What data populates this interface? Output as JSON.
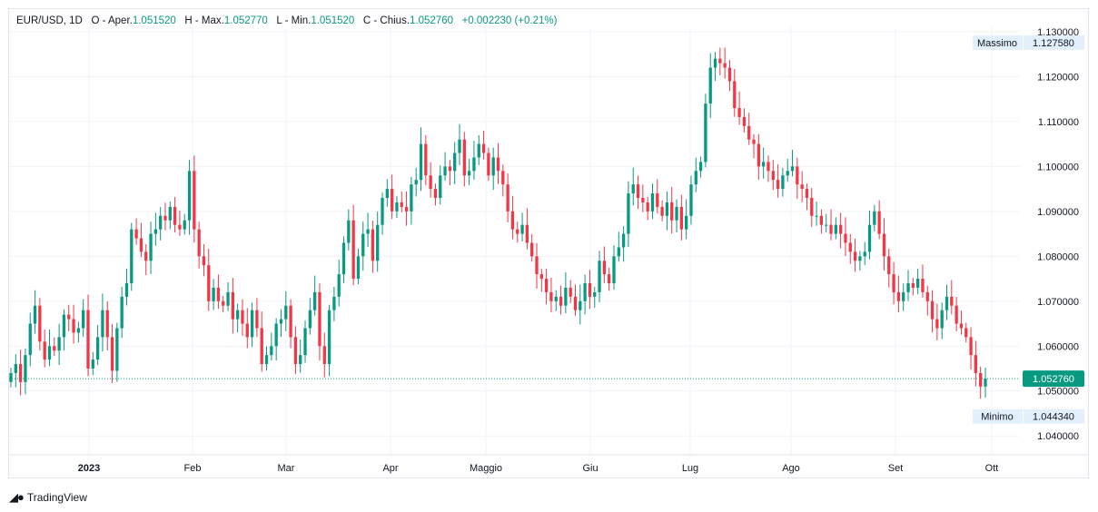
{
  "header": {
    "symbol": "EUR/USD, 1D",
    "open_label": "O - Aper.",
    "open_value": "1.051520",
    "high_label": "H - Max.",
    "high_value": "1.052770",
    "low_label": "L - Min.",
    "low_value": "1.051520",
    "close_label": "C - Chius.",
    "close_value": "1.052760",
    "change_value": "+0.002230 (+0.21%)"
  },
  "colors": {
    "up": "#089981",
    "down": "#f23645",
    "grid": "#f0f3fa",
    "axis_text": "#131722"
  },
  "footer": {
    "logo_icon": "tradingview-logo-icon",
    "brand": "TradingView"
  },
  "chart_data": {
    "type": "candlestick",
    "ylim": [
      1.036,
      1.131
    ],
    "x_tick_labels": [
      "2023",
      "Feb",
      "Mar",
      "Apr",
      "Maggio",
      "Giu",
      "Lug",
      "Ago",
      "Set",
      "Ott"
    ],
    "y_tick_labels": [
      "1.130000",
      "1.120000",
      "1.110000",
      "1.100000",
      "1.090000",
      "1.080000",
      "1.070000",
      "1.060000",
      "1.050000",
      "1.040000"
    ],
    "y_ticks": [
      1.13,
      1.12,
      1.11,
      1.1,
      1.09,
      1.08,
      1.07,
      1.06,
      1.05,
      1.04
    ],
    "max_label": "Massimo",
    "max_value": 1.12758,
    "max_text": "1.127580",
    "min_label": "Minimo",
    "min_value": 1.04434,
    "min_text": "1.044340",
    "last_value": 1.05276,
    "last_text": "1.052760",
    "close_series": [
      1.054,
      1.056,
      1.052,
      1.058,
      1.065,
      1.069,
      1.061,
      1.057,
      1.06,
      1.059,
      1.062,
      1.067,
      1.066,
      1.063,
      1.064,
      1.068,
      1.055,
      1.057,
      1.062,
      1.068,
      1.062,
      1.0545,
      1.064,
      1.071,
      1.074,
      1.086,
      1.084,
      1.081,
      1.079,
      1.085,
      1.086,
      1.089,
      1.088,
      1.091,
      1.087,
      1.086,
      1.088,
      1.099,
      1.086,
      1.08,
      1.078,
      1.07,
      1.073,
      1.07,
      1.069,
      1.072,
      1.066,
      1.068,
      1.065,
      1.062,
      1.068,
      1.064,
      1.056,
      1.058,
      1.06,
      1.065,
      1.066,
      1.069,
      1.062,
      1.056,
      1.058,
      1.064,
      1.068,
      1.072,
      1.06,
      1.056,
      1.068,
      1.071,
      1.076,
      1.083,
      1.088,
      1.075,
      1.08,
      1.085,
      1.086,
      1.079,
      1.087,
      1.093,
      1.095,
      1.09,
      1.092,
      1.091,
      1.09,
      1.096,
      1.097,
      1.105,
      1.098,
      1.095,
      1.093,
      1.098,
      1.1,
      1.099,
      1.103,
      1.106,
      1.098,
      1.099,
      1.102,
      1.105,
      1.103,
      1.098,
      1.102,
      1.099,
      1.096,
      1.09,
      1.086,
      1.085,
      1.087,
      1.083,
      1.08,
      1.076,
      1.075,
      1.072,
      1.07,
      1.071,
      1.069,
      1.073,
      1.071,
      1.068,
      1.07,
      1.074,
      1.071,
      1.072,
      1.079,
      1.076,
      1.074,
      1.08,
      1.082,
      1.085,
      1.094,
      1.096,
      1.093,
      1.092,
      1.09,
      1.094,
      1.091,
      1.089,
      1.092,
      1.088,
      1.091,
      1.086,
      1.089,
      1.096,
      1.099,
      1.101,
      1.114,
      1.122,
      1.124,
      1.123,
      1.122,
      1.119,
      1.113,
      1.111,
      1.109,
      1.106,
      1.105,
      1.1,
      1.101,
      1.099,
      1.097,
      1.095,
      1.098,
      1.099,
      1.1,
      1.096,
      1.095,
      1.093,
      1.089,
      1.089,
      1.087,
      1.087,
      1.085,
      1.087,
      1.085,
      1.083,
      1.081,
      1.079,
      1.08,
      1.081,
      1.087,
      1.09,
      1.085,
      1.08,
      1.076,
      1.072,
      1.07,
      1.072,
      1.074,
      1.073,
      1.075,
      1.072,
      1.07,
      1.066,
      1.064,
      1.068,
      1.071,
      1.069,
      1.065,
      1.064,
      1.062,
      1.058,
      1.054,
      1.051,
      1.05276
    ]
  }
}
